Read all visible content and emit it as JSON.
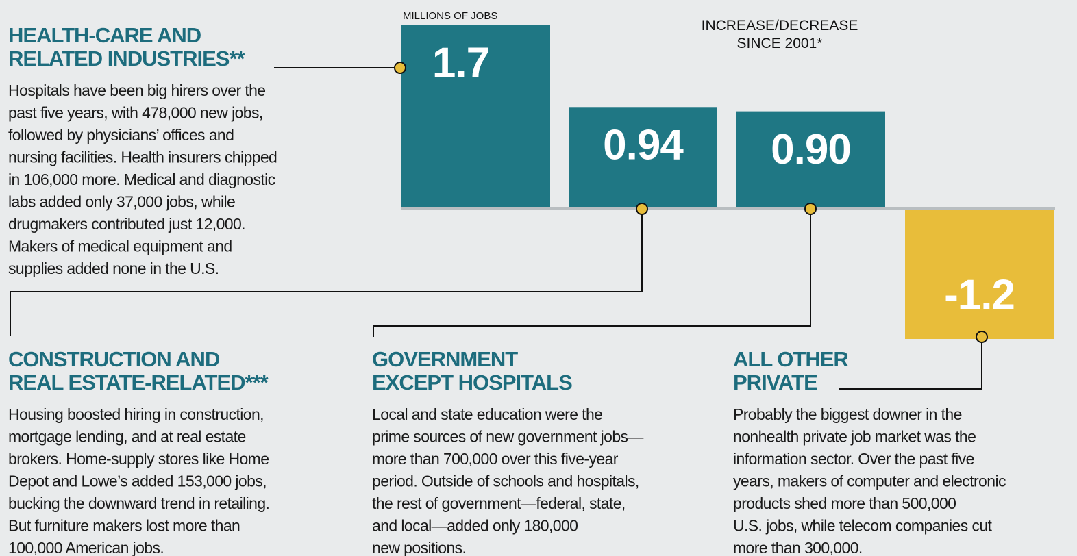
{
  "chart_data": {
    "type": "bar",
    "axis_label": "MILLIONS OF JOBS",
    "subtitle": [
      "INCREASE/DECREASE",
      "SINCE 2001*"
    ],
    "values": [
      1.7,
      0.94,
      0.9,
      -1.2
    ],
    "value_labels": [
      "1.7",
      "0.94",
      "0.90",
      "-1.2"
    ],
    "colors": [
      "#1f7784",
      "#1f7784",
      "#1f7784",
      "#e8bd3a"
    ],
    "ylim": [
      -1.2,
      1.7
    ],
    "panels": [
      {
        "heading": [
          "HEALTH-CARE AND",
          "RELATED INDUSTRIES**"
        ],
        "text": [
          "Hospitals have been big hirers over the",
          "past five years, with 478,000 new jobs,",
          "followed by physicians’ offices and",
          "nursing facilities. Health insurers chipped",
          "in 106,000 more. Medical and diagnostic",
          "labs added only 37,000 jobs, while",
          "drugmakers contributed just 12,000.",
          "Makers of medical equipment and",
          "supplies added none in the U.S."
        ]
      },
      {
        "heading": [
          "CONSTRUCTION AND",
          "REAL ESTATE-RELATED***"
        ],
        "text": [
          "Housing boosted hiring in construction,",
          "mortgage lending, and at real estate",
          "brokers. Home-supply stores like Home",
          "Depot and Lowe’s added 153,000 jobs,",
          "bucking the downward trend in retailing.",
          "But furniture makers lost more than",
          "100,000 American jobs."
        ]
      },
      {
        "heading": [
          "GOVERNMENT",
          "EXCEPT HOSPITALS"
        ],
        "text": [
          "Local and state education were the",
          "prime sources of new government jobs—",
          "more than 700,000 over this five-year",
          "period. Outside of schools and hospitals,",
          "the rest of government—federal, state,",
          "and local—added only 180,000",
          "new positions."
        ]
      },
      {
        "heading": [
          "ALL OTHER",
          "PRIVATE"
        ],
        "text": [
          "Probably the biggest downer in the",
          "nonhealth private job market was the",
          "information sector. Over the past five",
          "years, makers of computer and electronic",
          "products shed more than 500,000",
          "U.S. jobs, while telecom companies cut",
          "more than 300,000."
        ]
      }
    ]
  }
}
